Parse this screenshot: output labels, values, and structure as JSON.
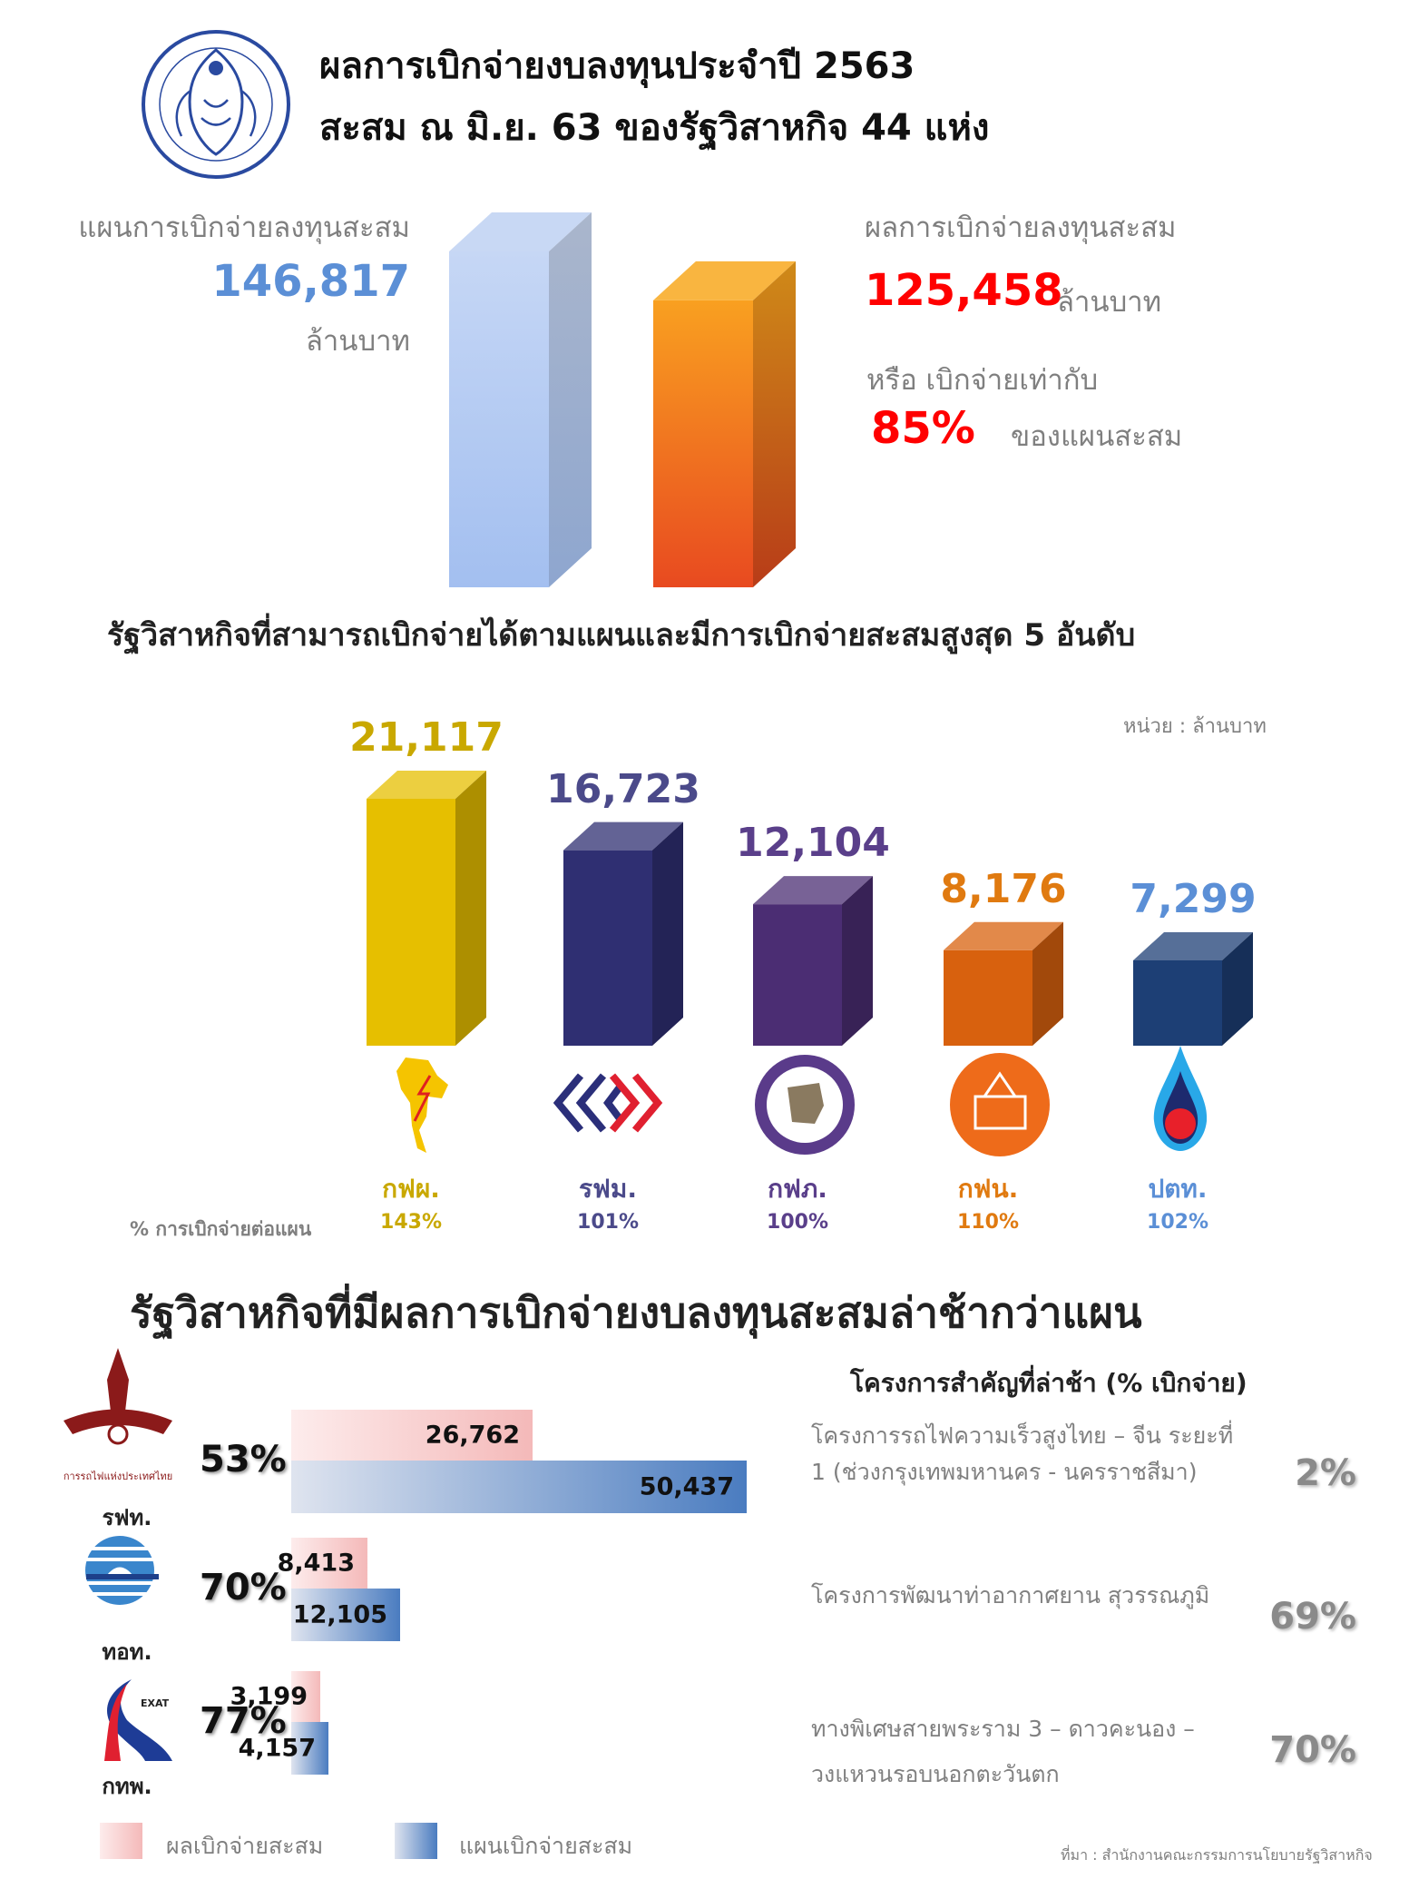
{
  "header": {
    "title_line1": "ผลการเบิกจ่ายงบลงทุนประจำปี 2563",
    "title_line2": "สะสม ณ มิ.ย. 63 ของรัฐวิสาหกิจ 44 แห่ง",
    "logo_icon": "sepo-garuda-seal-icon",
    "logo_text": "สำนักงานคณะกรรมการนโยบายรัฐวิสาหกิจ"
  },
  "summary": {
    "plan_label": "แผนการเบิกจ่ายลงทุนสะสม",
    "plan_value": "146,817",
    "plan_unit": "ล้านบาท",
    "actual_label": "ผลการเบิกจ่ายลงทุนสะสม",
    "actual_value": "125,458",
    "actual_unit": "ล้านบาท",
    "ratio_label": "หรือ เบิกจ่ายเท่ากับ",
    "ratio_value": "85%",
    "ratio_suffix": "ของแผนสะสม"
  },
  "top5": {
    "heading": "รัฐวิสาหกิจที่สามารถเบิกจ่ายได้ตามแผนและมีการเบิกจ่ายสะสมสูงสุด 5 อันดับ",
    "unit": "หน่วย : ล้านบาท",
    "pct_row_label": "% การเบิกจ่ายต่อแผน"
  },
  "delayed": {
    "heading": "รัฐวิสาหกิจที่มีผลการเบิกจ่ายงบลงทุนสะสมล่าช้ากว่าแผน",
    "projects_heading": "โครงการสำคัญที่ล่าช้า (% เบิกจ่าย)",
    "rows": [
      {
        "org": "รฟท.",
        "logo_icon": "srt-railway-logo-icon",
        "pct": "53%",
        "actual": "26,762",
        "plan": "50,437",
        "project": "โครงการรถไฟความเร็วสูงไทย – จีน ระยะที่ 1 (ช่วงกรุงเทพมหานคร - นครราชสีมา)",
        "project_pct": "2%"
      },
      {
        "org": "ทอท.",
        "logo_icon": "aot-airports-logo-icon",
        "pct": "70%",
        "actual": "8,413",
        "plan": "12,105",
        "project": "โครงการพัฒนาท่าอากาศยาน สุวรรณภูมิ",
        "project_pct": "69%"
      },
      {
        "org": "กทพ.",
        "logo_icon": "exat-expressway-logo-icon",
        "pct": "77%",
        "actual": "3,199",
        "plan": "4,157",
        "project": "ทางพิเศษสายพระราม 3 – ดาวคะนอง – วงแหวนรอบนอกตะวันตก",
        "project_pct": "70%"
      }
    ],
    "legend": {
      "actual": "ผลเบิกจ่ายสะสม",
      "plan": "แผนเบิกจ่ายสะสม"
    }
  },
  "source": "ที่มา : สำนักงานคณะกรรมการนโยบายรัฐวิสาหกิจ",
  "colors": {
    "plan_blue": "#5b8fd6",
    "actual_red": "#ff0000",
    "pink": "#f4b9b9",
    "blue": "#4a7cc0"
  },
  "chart_data": [
    {
      "type": "bar",
      "title": "",
      "categories": [
        "แผนการเบิกจ่ายลงทุนสะสม",
        "ผลการเบิกจ่ายลงทุนสะสม"
      ],
      "values": [
        146817,
        125458
      ],
      "colors": [
        "#a9c4f2",
        "#f08a1c"
      ],
      "unit": "ล้านบาท"
    },
    {
      "type": "bar",
      "title": "รัฐวิสาหกิจที่สามารถเบิกจ่ายได้ตามแผนและมีการเบิกจ่ายสะสมสูงสุด 5 อันดับ",
      "categories": [
        "กฟผ.",
        "รฟม.",
        "กฟภ.",
        "กฟน.",
        "ปตท."
      ],
      "values": [
        21117,
        16723,
        12104,
        8176,
        7299
      ],
      "value_labels": [
        "21,117",
        "16,723",
        "12,104",
        "8,176",
        "7,299"
      ],
      "pct_of_plan": [
        "143%",
        "101%",
        "100%",
        "110%",
        "102%"
      ],
      "colors": [
        "#e6bf00",
        "#2f2f72",
        "#4b2d73",
        "#d8610e",
        "#1d3f75"
      ],
      "label_colors": [
        "#c9a800",
        "#4b4a8a",
        "#5a3f8a",
        "#e07a10",
        "#5b8fd6"
      ],
      "logo_icons": [
        "egat-thailand-map-icon",
        "mrta-chevrons-icon",
        "pea-seal-icon",
        "mea-seal-icon",
        "ptt-flame-icon"
      ],
      "unit": "ล้านบาท"
    },
    {
      "type": "bar",
      "orientation": "horizontal",
      "title": "รัฐวิสาหกิจที่มีผลการเบิกจ่ายงบลงทุนสะสมล่าช้ากว่าแผน",
      "categories": [
        "รฟท.",
        "ทอท.",
        "กทพ."
      ],
      "series": [
        {
          "name": "ผลเบิกจ่ายสะสม",
          "values": [
            26762,
            8413,
            3199
          ]
        },
        {
          "name": "แผนเบิกจ่ายสะสม",
          "values": [
            50437,
            12105,
            4157
          ]
        }
      ]
    }
  ]
}
